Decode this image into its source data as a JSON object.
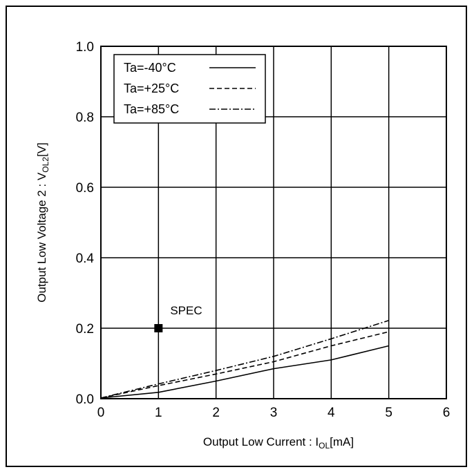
{
  "chart_data": {
    "type": "line",
    "title": "",
    "xlabel": "Output Low Current : I",
    "xlabel_sub": "OL",
    "xlabel_unit": "[mA]",
    "ylabel": "Output Low Voltage 2 : V",
    "ylabel_sub": "OL2",
    "ylabel_unit": "[V]",
    "xlim": [
      0,
      6
    ],
    "ylim": [
      0,
      1.0
    ],
    "x_ticks": [
      "0",
      "1",
      "2",
      "3",
      "4",
      "5",
      "6"
    ],
    "y_ticks": [
      "0.0",
      "0.2",
      "0.4",
      "0.6",
      "0.8",
      "1.0"
    ],
    "grid": true,
    "legend_position": "top-left",
    "series": [
      {
        "name": "Ta=-40°C",
        "dash": "solid",
        "x": [
          0,
          1,
          2,
          3,
          4,
          5
        ],
        "y": [
          0.002,
          0.018,
          0.05,
          0.085,
          0.11,
          0.15
        ]
      },
      {
        "name": "Ta=+25°C",
        "dash": "dashed",
        "x": [
          0,
          1,
          2,
          3,
          4,
          5
        ],
        "y": [
          0.002,
          0.037,
          0.07,
          0.105,
          0.15,
          0.19
        ]
      },
      {
        "name": "Ta=+85°C",
        "dash": "dashdot",
        "x": [
          0,
          1,
          2,
          3,
          4,
          5
        ],
        "y": [
          0.002,
          0.042,
          0.08,
          0.12,
          0.17,
          0.222
        ]
      }
    ],
    "annotations": [
      {
        "label": "SPEC",
        "x": 1,
        "y": 0.2,
        "marker": "square"
      }
    ]
  }
}
